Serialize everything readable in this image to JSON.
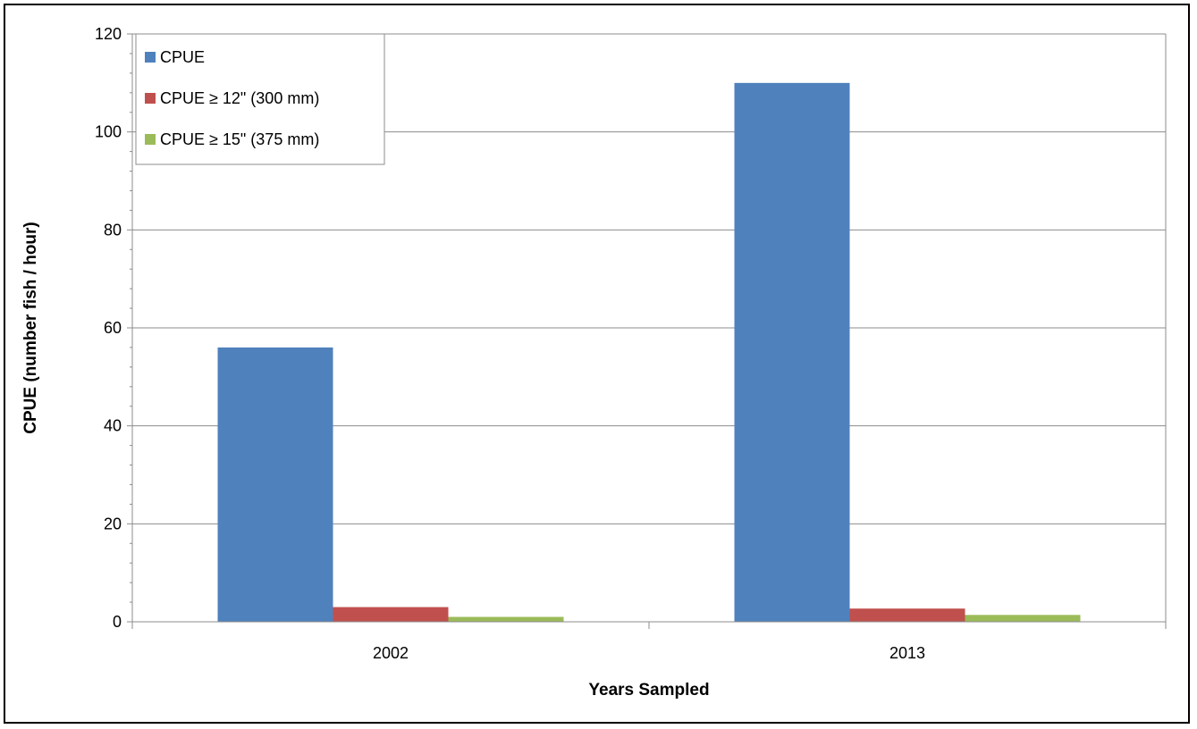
{
  "chart_data": {
    "type": "bar",
    "title": "",
    "xlabel": "Years Sampled",
    "ylabel": "CPUE (number fish / hour)",
    "categories": [
      "2002",
      "2013"
    ],
    "series": [
      {
        "name": "CPUE",
        "color": "#4F81BD",
        "values": [
          56,
          110
        ]
      },
      {
        "name": "CPUE ≥ 12\" (300 mm)",
        "color": "#C0504D",
        "values": [
          3,
          2.7
        ]
      },
      {
        "name": "CPUE ≥ 15\" (375 mm)",
        "color": "#9BBB59",
        "values": [
          1,
          1.4
        ]
      }
    ],
    "ylim": [
      0,
      120
    ],
    "yticks": [
      0,
      20,
      40,
      60,
      80,
      100,
      120
    ],
    "grid": true,
    "legend_position": "top-left"
  }
}
